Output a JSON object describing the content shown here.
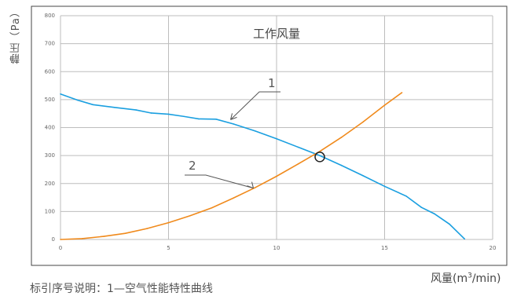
{
  "chart_data": {
    "type": "line",
    "title": "工作风量",
    "xlabel_prefix": "风量(m",
    "xlabel_sup": "3",
    "xlabel_suffix": "/min)",
    "ylabel": "静压（Pa）",
    "xlim": [
      0,
      20
    ],
    "ylim": [
      0,
      800
    ],
    "xticks": [
      0,
      5,
      10,
      15,
      20
    ],
    "yticks": [
      0,
      100,
      200,
      300,
      400,
      500,
      600,
      700,
      800
    ],
    "grid": true,
    "series": [
      {
        "name": "1",
        "color": "#1a9fe0",
        "x": [
          0,
          0.8,
          1.5,
          2.5,
          3.5,
          4.2,
          5,
          5.7,
          6.4,
          7.2,
          8,
          9,
          10,
          11,
          12,
          13,
          14,
          15,
          16,
          16.7,
          17.3,
          18,
          18.7
        ],
        "y": [
          520,
          498,
          482,
          472,
          463,
          452,
          448,
          440,
          431,
          430,
          413,
          388,
          360,
          330,
          300,
          265,
          228,
          190,
          155,
          115,
          92,
          55,
          2
        ]
      },
      {
        "name": "2",
        "color": "#f08a1c",
        "x": [
          0,
          1,
          2,
          3,
          4,
          5,
          6,
          7,
          8,
          9,
          10,
          11,
          12,
          13,
          14,
          15,
          15.8
        ],
        "y": [
          0,
          3,
          11,
          22,
          39,
          60,
          85,
          113,
          148,
          185,
          226,
          270,
          315,
          365,
          420,
          480,
          525
        ]
      }
    ],
    "annotations": [
      {
        "label": "1",
        "target": [
          7.8,
          420
        ]
      },
      {
        "label": "2",
        "target": [
          9.0,
          178
        ]
      }
    ],
    "operating_point": {
      "x": 12.0,
      "y": 295
    }
  },
  "note": "标引序号说明：1—空气性能特性曲线"
}
